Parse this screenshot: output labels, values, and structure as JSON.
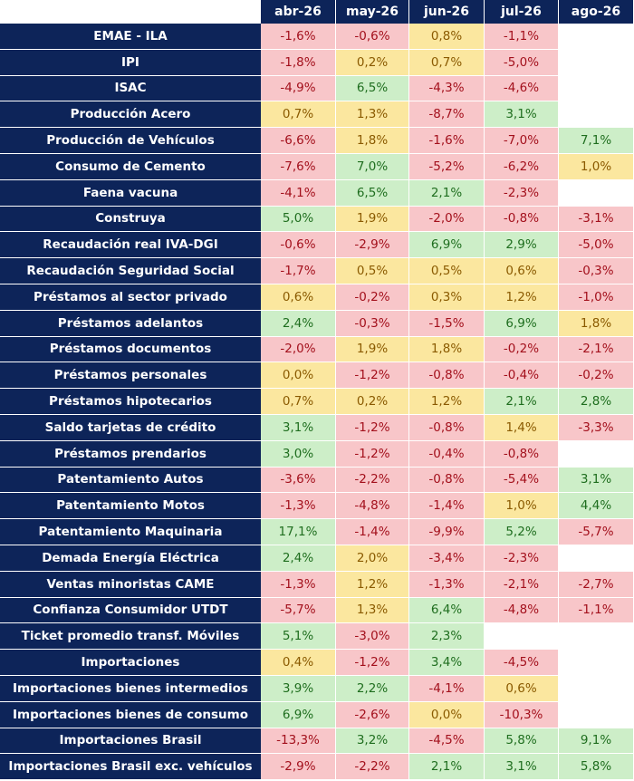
{
  "columns": [
    "abr-26",
    "may-26",
    "jun-26",
    "jul-26",
    "ago-26"
  ],
  "colors": {
    "header_bg": "#0d2459",
    "red": "#f8c6c9",
    "yellow": "#fbe79f",
    "green": "#cdeec8"
  },
  "rows": [
    {
      "label": "EMAE - ILA",
      "cells": [
        {
          "v": "-1,6%",
          "c": "red"
        },
        {
          "v": "-0,6%",
          "c": "red"
        },
        {
          "v": "0,8%",
          "c": "yellow"
        },
        {
          "v": "-1,1%",
          "c": "red"
        },
        {
          "v": "",
          "c": "empty"
        }
      ]
    },
    {
      "label": "IPI",
      "cells": [
        {
          "v": "-1,8%",
          "c": "red"
        },
        {
          "v": "0,2%",
          "c": "yellow"
        },
        {
          "v": "0,7%",
          "c": "yellow"
        },
        {
          "v": "-5,0%",
          "c": "red"
        },
        {
          "v": "",
          "c": "empty"
        }
      ]
    },
    {
      "label": "ISAC",
      "cells": [
        {
          "v": "-4,9%",
          "c": "red"
        },
        {
          "v": "6,5%",
          "c": "green"
        },
        {
          "v": "-4,3%",
          "c": "red"
        },
        {
          "v": "-4,6%",
          "c": "red"
        },
        {
          "v": "",
          "c": "empty"
        }
      ]
    },
    {
      "label": "Producción Acero",
      "cells": [
        {
          "v": "0,7%",
          "c": "yellow"
        },
        {
          "v": "1,3%",
          "c": "yellow"
        },
        {
          "v": "-8,7%",
          "c": "red"
        },
        {
          "v": "3,1%",
          "c": "green"
        },
        {
          "v": "",
          "c": "empty"
        }
      ]
    },
    {
      "label": "Producción de Vehículos",
      "cells": [
        {
          "v": "-6,6%",
          "c": "red"
        },
        {
          "v": "1,8%",
          "c": "yellow"
        },
        {
          "v": "-1,6%",
          "c": "red"
        },
        {
          "v": "-7,0%",
          "c": "red"
        },
        {
          "v": "7,1%",
          "c": "green"
        }
      ]
    },
    {
      "label": "Consumo de Cemento",
      "cells": [
        {
          "v": "-7,6%",
          "c": "red"
        },
        {
          "v": "7,0%",
          "c": "green"
        },
        {
          "v": "-5,2%",
          "c": "red"
        },
        {
          "v": "-6,2%",
          "c": "red"
        },
        {
          "v": "1,0%",
          "c": "yellow"
        }
      ]
    },
    {
      "label": "Faena vacuna",
      "cells": [
        {
          "v": "-4,1%",
          "c": "red"
        },
        {
          "v": "6,5%",
          "c": "green"
        },
        {
          "v": "2,1%",
          "c": "green"
        },
        {
          "v": "-2,3%",
          "c": "red"
        },
        {
          "v": "",
          "c": "empty"
        }
      ]
    },
    {
      "label": "Construya",
      "cells": [
        {
          "v": "5,0%",
          "c": "green"
        },
        {
          "v": "1,9%",
          "c": "yellow"
        },
        {
          "v": "-2,0%",
          "c": "red"
        },
        {
          "v": "-0,8%",
          "c": "red"
        },
        {
          "v": "-3,1%",
          "c": "red"
        }
      ]
    },
    {
      "label": "Recaudación real IVA-DGI",
      "cells": [
        {
          "v": "-0,6%",
          "c": "red"
        },
        {
          "v": "-2,9%",
          "c": "red"
        },
        {
          "v": "6,9%",
          "c": "green"
        },
        {
          "v": "2,9%",
          "c": "green"
        },
        {
          "v": "-5,0%",
          "c": "red"
        }
      ]
    },
    {
      "label": "Recaudación Seguridad Social",
      "cells": [
        {
          "v": "-1,7%",
          "c": "red"
        },
        {
          "v": "0,5%",
          "c": "yellow"
        },
        {
          "v": "0,5%",
          "c": "yellow"
        },
        {
          "v": "0,6%",
          "c": "yellow"
        },
        {
          "v": "-0,3%",
          "c": "red"
        }
      ]
    },
    {
      "label": "Préstamos al sector privado",
      "cells": [
        {
          "v": "0,6%",
          "c": "yellow"
        },
        {
          "v": "-0,2%",
          "c": "red"
        },
        {
          "v": "0,3%",
          "c": "yellow"
        },
        {
          "v": "1,2%",
          "c": "yellow"
        },
        {
          "v": "-1,0%",
          "c": "red"
        }
      ]
    },
    {
      "label": "Préstamos adelantos",
      "cells": [
        {
          "v": "2,4%",
          "c": "green"
        },
        {
          "v": "-0,3%",
          "c": "red"
        },
        {
          "v": "-1,5%",
          "c": "red"
        },
        {
          "v": "6,9%",
          "c": "green"
        },
        {
          "v": "1,8%",
          "c": "yellow"
        }
      ]
    },
    {
      "label": "Préstamos documentos",
      "cells": [
        {
          "v": "-2,0%",
          "c": "red"
        },
        {
          "v": "1,9%",
          "c": "yellow"
        },
        {
          "v": "1,8%",
          "c": "yellow"
        },
        {
          "v": "-0,2%",
          "c": "red"
        },
        {
          "v": "-2,1%",
          "c": "red"
        }
      ]
    },
    {
      "label": "Préstamos personales",
      "cells": [
        {
          "v": "0,0%",
          "c": "yellow"
        },
        {
          "v": "-1,2%",
          "c": "red"
        },
        {
          "v": "-0,8%",
          "c": "red"
        },
        {
          "v": "-0,4%",
          "c": "red"
        },
        {
          "v": "-0,2%",
          "c": "red"
        }
      ]
    },
    {
      "label": "Préstamos hipotecarios",
      "cells": [
        {
          "v": "0,7%",
          "c": "yellow"
        },
        {
          "v": "0,2%",
          "c": "yellow"
        },
        {
          "v": "1,2%",
          "c": "yellow"
        },
        {
          "v": "2,1%",
          "c": "green"
        },
        {
          "v": "2,8%",
          "c": "green"
        }
      ]
    },
    {
      "label": "Saldo tarjetas de crédito",
      "cells": [
        {
          "v": "3,1%",
          "c": "green"
        },
        {
          "v": "-1,2%",
          "c": "red"
        },
        {
          "v": "-0,8%",
          "c": "red"
        },
        {
          "v": "1,4%",
          "c": "yellow"
        },
        {
          "v": "-3,3%",
          "c": "red"
        }
      ]
    },
    {
      "label": "Préstamos prendarios",
      "cells": [
        {
          "v": "3,0%",
          "c": "green"
        },
        {
          "v": "-1,2%",
          "c": "red"
        },
        {
          "v": "-0,4%",
          "c": "red"
        },
        {
          "v": "-0,8%",
          "c": "red"
        },
        {
          "v": "",
          "c": "empty"
        }
      ]
    },
    {
      "label": "Patentamiento Autos",
      "cells": [
        {
          "v": "-3,6%",
          "c": "red"
        },
        {
          "v": "-2,2%",
          "c": "red"
        },
        {
          "v": "-0,8%",
          "c": "red"
        },
        {
          "v": "-5,4%",
          "c": "red"
        },
        {
          "v": "3,1%",
          "c": "green"
        }
      ]
    },
    {
      "label": "Patentamiento Motos",
      "cells": [
        {
          "v": "-1,3%",
          "c": "red"
        },
        {
          "v": "-4,8%",
          "c": "red"
        },
        {
          "v": "-1,4%",
          "c": "red"
        },
        {
          "v": "1,0%",
          "c": "yellow"
        },
        {
          "v": "4,4%",
          "c": "green"
        }
      ]
    },
    {
      "label": "Patentamiento Maquinaria",
      "cells": [
        {
          "v": "17,1%",
          "c": "green"
        },
        {
          "v": "-1,4%",
          "c": "red"
        },
        {
          "v": "-9,9%",
          "c": "red"
        },
        {
          "v": "5,2%",
          "c": "green"
        },
        {
          "v": "-5,7%",
          "c": "red"
        }
      ]
    },
    {
      "label": "Demada Energía Eléctrica",
      "cells": [
        {
          "v": "2,4%",
          "c": "green"
        },
        {
          "v": "2,0%",
          "c": "yellow"
        },
        {
          "v": "-3,4%",
          "c": "red"
        },
        {
          "v": "-2,3%",
          "c": "red"
        },
        {
          "v": "",
          "c": "empty"
        }
      ]
    },
    {
      "label": "Ventas minoristas CAME",
      "cells": [
        {
          "v": "-1,3%",
          "c": "red"
        },
        {
          "v": "1,2%",
          "c": "yellow"
        },
        {
          "v": "-1,3%",
          "c": "red"
        },
        {
          "v": "-2,1%",
          "c": "red"
        },
        {
          "v": "-2,7%",
          "c": "red"
        }
      ]
    },
    {
      "label": "Confianza Consumidor UTDT",
      "cells": [
        {
          "v": "-5,7%",
          "c": "red"
        },
        {
          "v": "1,3%",
          "c": "yellow"
        },
        {
          "v": "6,4%",
          "c": "green"
        },
        {
          "v": "-4,8%",
          "c": "red"
        },
        {
          "v": "-1,1%",
          "c": "red"
        }
      ]
    },
    {
      "label": "Ticket promedio transf. Móviles",
      "cells": [
        {
          "v": "5,1%",
          "c": "green"
        },
        {
          "v": "-3,0%",
          "c": "red"
        },
        {
          "v": "2,3%",
          "c": "green"
        },
        {
          "v": "",
          "c": "empty"
        },
        {
          "v": "",
          "c": "empty"
        }
      ]
    },
    {
      "label": "Importaciones",
      "cells": [
        {
          "v": "0,4%",
          "c": "yellow"
        },
        {
          "v": "-1,2%",
          "c": "red"
        },
        {
          "v": "3,4%",
          "c": "green"
        },
        {
          "v": "-4,5%",
          "c": "red"
        },
        {
          "v": "",
          "c": "empty"
        }
      ]
    },
    {
      "label": "Importaciones bienes intermedios",
      "cells": [
        {
          "v": "3,9%",
          "c": "green"
        },
        {
          "v": "2,2%",
          "c": "green"
        },
        {
          "v": "-4,1%",
          "c": "red"
        },
        {
          "v": "0,6%",
          "c": "yellow"
        },
        {
          "v": "",
          "c": "empty"
        }
      ]
    },
    {
      "label": "Importaciones bienes de consumo",
      "cells": [
        {
          "v": "6,9%",
          "c": "green"
        },
        {
          "v": "-2,6%",
          "c": "red"
        },
        {
          "v": "0,0%",
          "c": "yellow"
        },
        {
          "v": "-10,3%",
          "c": "red"
        },
        {
          "v": "",
          "c": "empty"
        }
      ]
    },
    {
      "label": "Importaciones Brasil",
      "cells": [
        {
          "v": "-13,3%",
          "c": "red"
        },
        {
          "v": "3,2%",
          "c": "green"
        },
        {
          "v": "-4,5%",
          "c": "red"
        },
        {
          "v": "5,8%",
          "c": "green"
        },
        {
          "v": "9,1%",
          "c": "green"
        }
      ]
    },
    {
      "label": "Importaciones Brasil exc. vehículos",
      "cells": [
        {
          "v": "-2,9%",
          "c": "red"
        },
        {
          "v": "-2,2%",
          "c": "red"
        },
        {
          "v": "2,1%",
          "c": "green"
        },
        {
          "v": "3,1%",
          "c": "green"
        },
        {
          "v": "5,8%",
          "c": "green"
        }
      ]
    }
  ]
}
